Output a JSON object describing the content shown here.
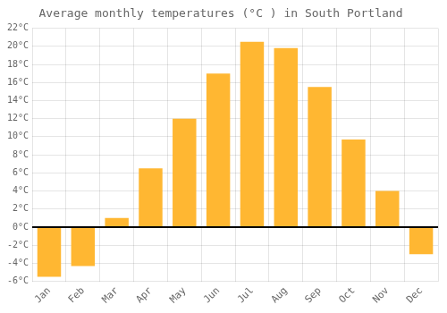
{
  "chart_data": {
    "type": "bar",
    "title": "Average monthly temperatures (°C ) in South Portland",
    "categories": [
      "Jan",
      "Feb",
      "Mar",
      "Apr",
      "May",
      "Jun",
      "Jul",
      "Aug",
      "Sep",
      "Oct",
      "Nov",
      "Dec"
    ],
    "values": [
      -5.5,
      -4.3,
      1.0,
      6.5,
      12.0,
      17.0,
      20.5,
      19.8,
      15.5,
      9.7,
      4.0,
      -3.0
    ],
    "color": "#FFB732",
    "ylim": [
      -6,
      22
    ],
    "yticks": [
      {
        "value": -6,
        "label": "-6°C"
      },
      {
        "value": -4,
        "label": "-4°C"
      },
      {
        "value": -2,
        "label": "-2°C"
      },
      {
        "value": 0,
        "label": "0°C"
      },
      {
        "value": 2,
        "label": "2°C"
      },
      {
        "value": 4,
        "label": "4°C"
      },
      {
        "value": 6,
        "label": "6°C"
      },
      {
        "value": 8,
        "label": "8°C"
      },
      {
        "value": 10,
        "label": "10°C"
      },
      {
        "value": 12,
        "label": "12°C"
      },
      {
        "value": 14,
        "label": "14°C"
      },
      {
        "value": 16,
        "label": "16°C"
      },
      {
        "value": 18,
        "label": "18°C"
      },
      {
        "value": 20,
        "label": "20°C"
      },
      {
        "value": 22,
        "label": "22°C"
      }
    ],
    "grid": true
  }
}
